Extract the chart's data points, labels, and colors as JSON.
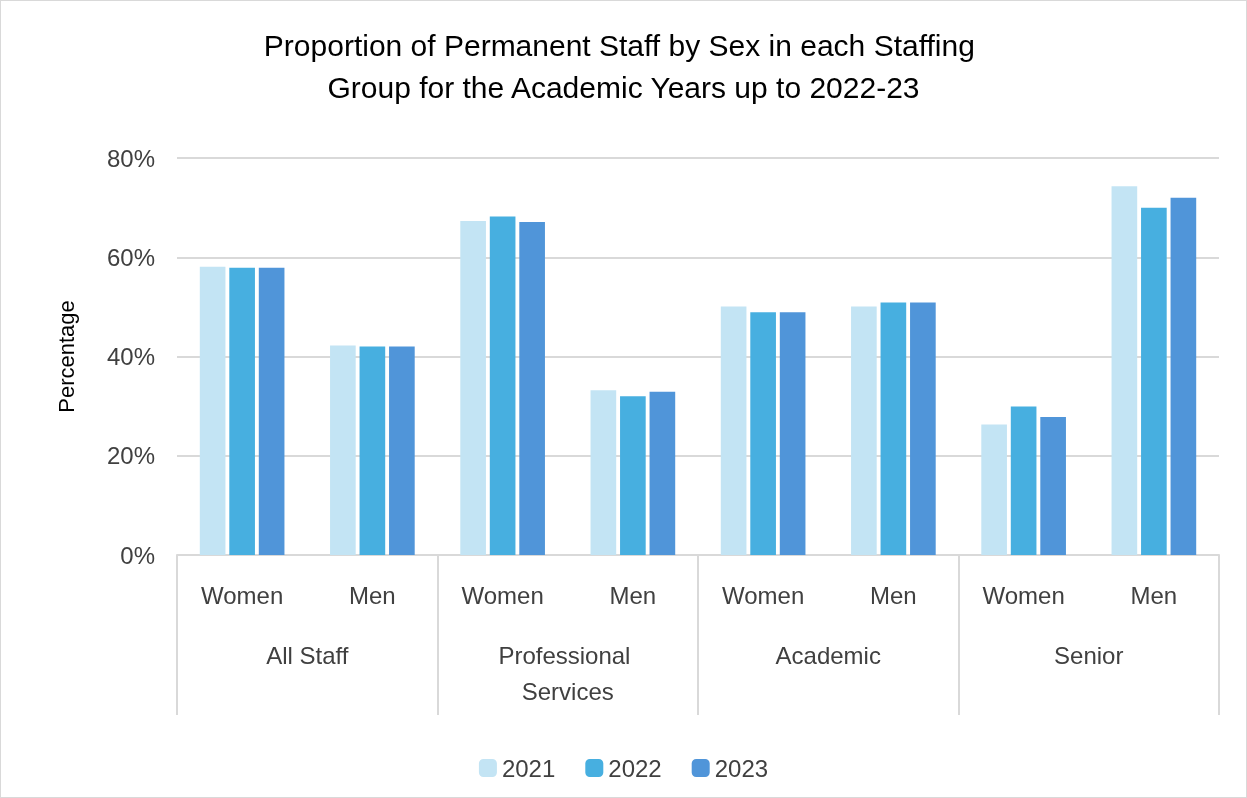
{
  "chart_data": {
    "type": "bar",
    "title": "Proportion of Permanent Staff by Sex in each Staffing Group for the Academic Years up to 2022-23",
    "ylabel": "Percentage",
    "categories": [
      "Women",
      "Men",
      "Women",
      "Men",
      "Women",
      "Men",
      "Women",
      "Men"
    ],
    "annotations": [
      "All Staff",
      "Professional Services",
      "Academic",
      "Senior"
    ],
    "series": [
      {
        "name": "2021",
        "color": "#c3e4f4",
        "values": [
          58.1,
          42.2,
          67.3,
          33.2,
          50.1,
          50.1,
          26.3,
          74.3
        ]
      },
      {
        "name": "2022",
        "color": "#47afe0",
        "values": [
          57.9,
          42.0,
          68.2,
          32.0,
          48.9,
          50.9,
          29.9,
          70.0
        ]
      },
      {
        "name": "2023",
        "color": "#5095d9",
        "values": [
          57.9,
          42.0,
          67.1,
          32.9,
          48.9,
          50.9,
          27.8,
          72.0
        ]
      }
    ],
    "ylim": [
      0,
      80
    ],
    "yticks": [
      {
        "value": 0,
        "label": "0%"
      },
      {
        "value": 20,
        "label": "20%"
      },
      {
        "value": 40,
        "label": "40%"
      },
      {
        "value": 60,
        "label": "60%"
      },
      {
        "value": 80,
        "label": "80%"
      }
    ],
    "grid": "y",
    "legend": "bottom"
  }
}
